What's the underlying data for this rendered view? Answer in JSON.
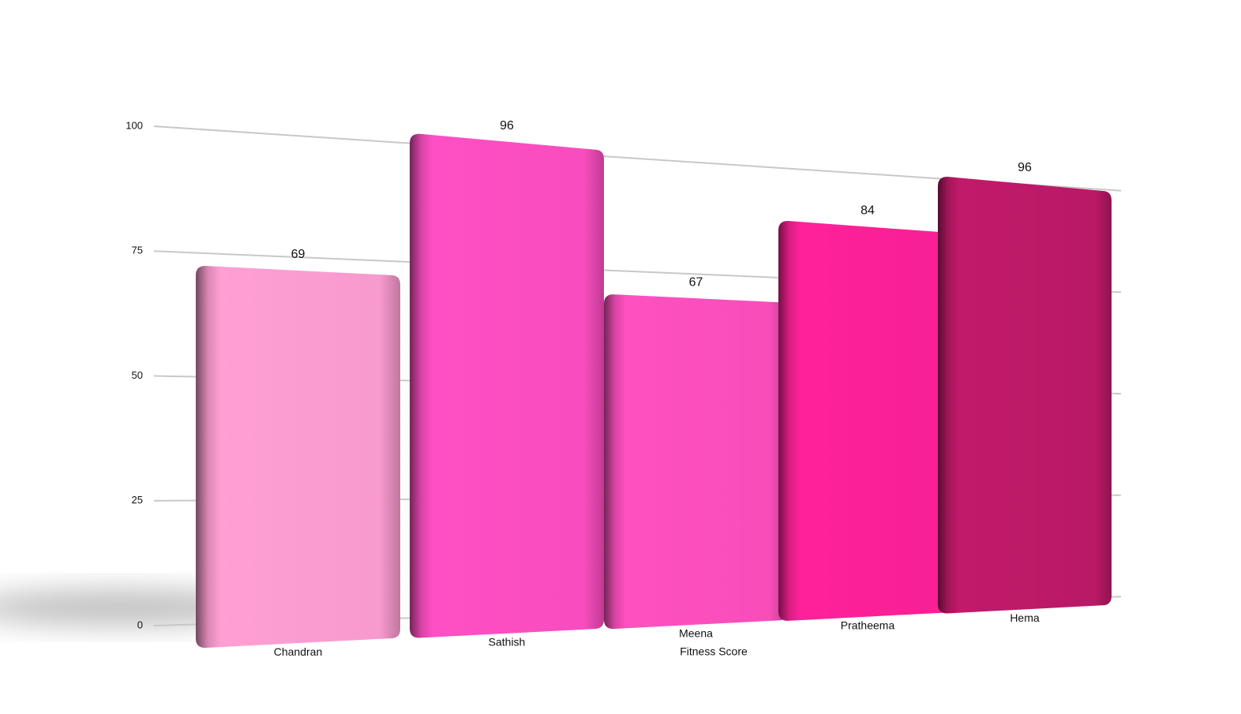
{
  "chart_data": {
    "type": "bar",
    "x_label": "Fitness Score",
    "categories": [
      "Chandran",
      "Sathish",
      "Meena",
      "Pratheema",
      "Hema"
    ],
    "values": [
      69,
      96,
      67,
      84,
      96
    ],
    "colors": [
      "#ff9fd4",
      "#ff4fc4",
      "#ff50c0",
      "#ff2199",
      "#c01a6a"
    ],
    "ylim": [
      0,
      100
    ],
    "yticks": [
      0,
      25,
      50,
      75,
      100
    ],
    "grid": true
  }
}
